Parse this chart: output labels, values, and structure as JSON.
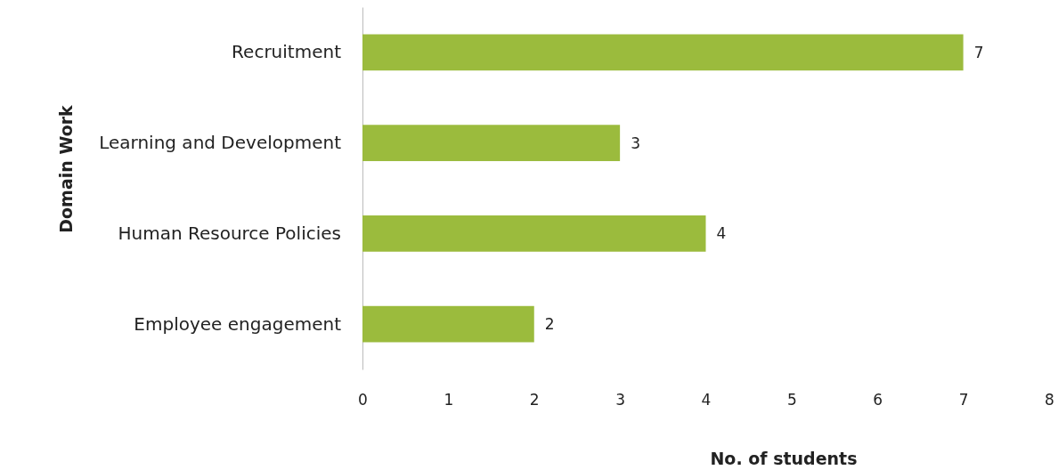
{
  "chart_data": {
    "type": "bar",
    "orientation": "horizontal",
    "xlabel": "No. of students",
    "ylabel": "Domain Work",
    "categories": [
      "Recruitment",
      "Learning and Development",
      "Human Resource Policies",
      "Employee engagement"
    ],
    "values": [
      7,
      3,
      4,
      2
    ],
    "color": "#9bbb3d",
    "xlim": [
      0,
      8
    ],
    "xticks": [
      0,
      1,
      2,
      3,
      4,
      5,
      6,
      7,
      8
    ],
    "grid": false,
    "data_labels": true
  }
}
